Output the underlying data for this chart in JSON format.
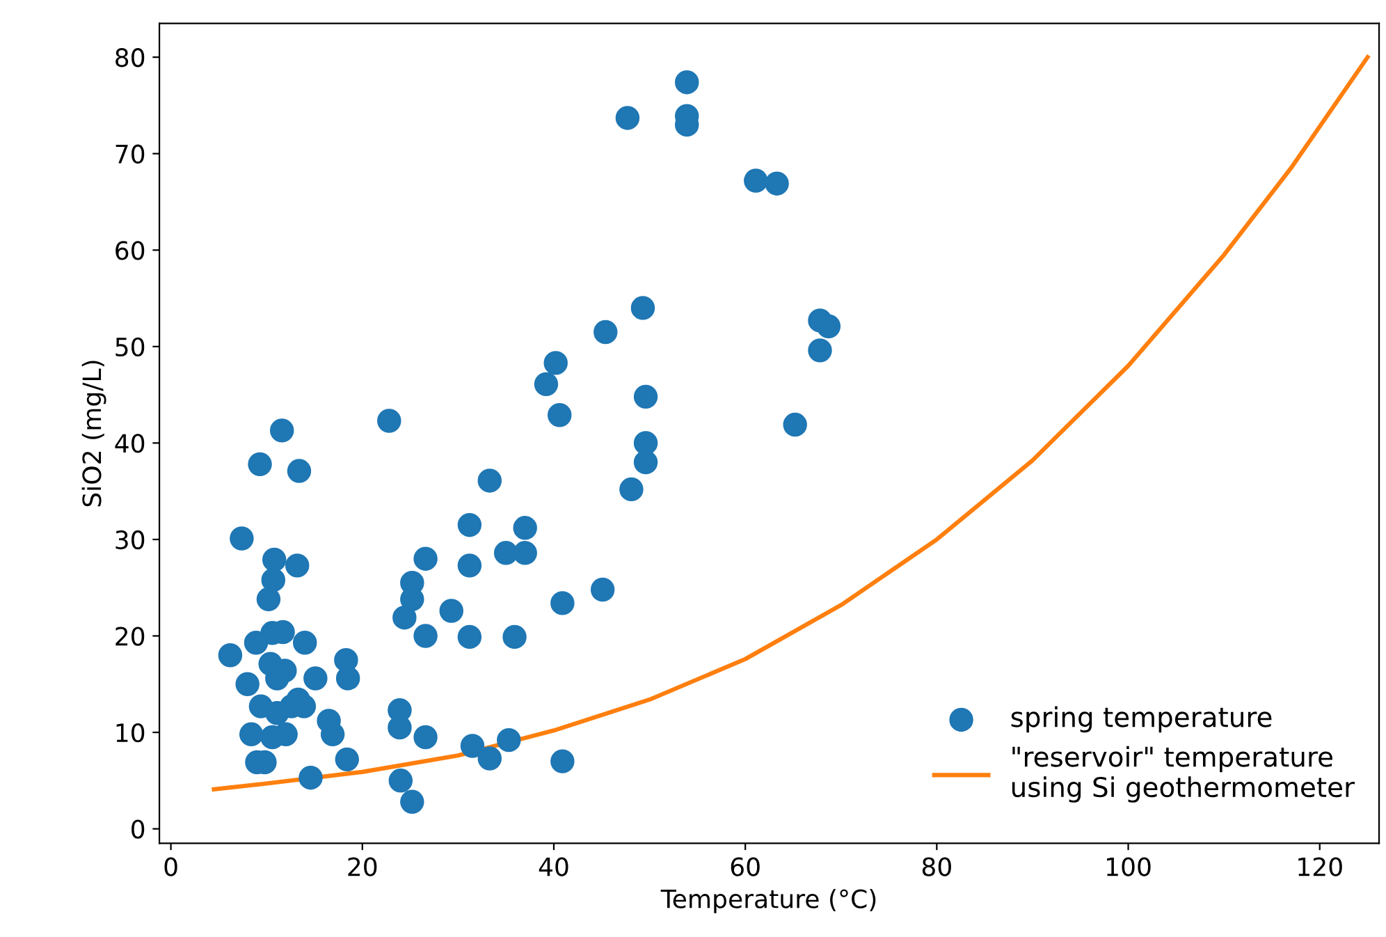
{
  "chart_data": {
    "type": "scatter",
    "xlabel": "Temperature (°C)",
    "ylabel": "SiO2 (mg/L)",
    "xlim": [
      -1.2,
      126.2
    ],
    "ylim": [
      -1.5,
      83.5
    ],
    "xticks": [
      0,
      20,
      40,
      60,
      80,
      100,
      120
    ],
    "yticks": [
      0,
      10,
      20,
      30,
      40,
      50,
      60,
      70,
      80
    ],
    "legend": "bottom right",
    "grid": false,
    "series": [
      {
        "name": "spring temperature",
        "marker": "circle",
        "color": "#1f77b4",
        "x": [
          6.2,
          7.4,
          9.3,
          11.6,
          13.4,
          13.2,
          8.0,
          8.9,
          10.2,
          10.8,
          10.7,
          10.6,
          11.7,
          14.0,
          15.1,
          8.4,
          9.0,
          9.8,
          10.6,
          12.0,
          13.3,
          12.6,
          13.9,
          11.1,
          11.9,
          10.4,
          9.4,
          11.1,
          16.5,
          16.9,
          18.5,
          18.3,
          14.6,
          18.4,
          22.8,
          24.0,
          25.2,
          23.9,
          23.9,
          26.6,
          24.4,
          25.2,
          25.2,
          26.6,
          26.6,
          29.3,
          31.2,
          31.2,
          31.2,
          31.5,
          33.3,
          33.3,
          35.0,
          37.0,
          37.0,
          35.9,
          35.3,
          40.9,
          40.9,
          39.2,
          40.2,
          40.6,
          45.1,
          45.4,
          47.7,
          53.9,
          53.9,
          53.9,
          49.3,
          49.6,
          49.6,
          49.6,
          48.1,
          61.1,
          63.3,
          67.8,
          68.7,
          67.8,
          65.2
        ],
        "values": [
          18.0,
          30.1,
          37.8,
          41.3,
          37.1,
          27.3,
          15.0,
          19.3,
          23.8,
          27.9,
          25.8,
          20.3,
          20.4,
          19.3,
          15.6,
          9.8,
          6.9,
          6.9,
          9.5,
          9.8,
          13.4,
          12.7,
          12.7,
          15.6,
          16.4,
          17.1,
          12.7,
          12.0,
          11.2,
          9.8,
          15.6,
          17.5,
          5.3,
          7.2,
          42.3,
          5.0,
          2.8,
          10.5,
          12.3,
          9.5,
          21.9,
          25.5,
          23.8,
          20.0,
          28.0,
          22.6,
          31.5,
          27.3,
          19.9,
          8.6,
          36.1,
          7.3,
          28.6,
          28.6,
          31.2,
          19.9,
          9.2,
          23.4,
          7.0,
          46.1,
          48.3,
          42.9,
          24.8,
          51.5,
          73.7,
          77.4,
          73.9,
          73.0,
          54.0,
          44.8,
          40.0,
          38.0,
          35.2,
          67.2,
          66.9,
          52.7,
          52.1,
          49.6,
          41.9
        ]
      },
      {
        "name": "\"reservoir\" temperature\nusing Si geothermometer",
        "type": "line",
        "marker": "none",
        "line_style": "solid",
        "color": "#ff7f0e",
        "x": [
          4.5,
          10,
          20,
          30,
          40,
          50,
          60,
          70,
          80,
          90,
          100,
          110,
          117,
          125
        ],
        "values": [
          4.1,
          4.7,
          5.9,
          7.6,
          10.2,
          13.4,
          17.6,
          23.2,
          30.0,
          38.2,
          48.0,
          59.5,
          68.5,
          80.0
        ]
      }
    ]
  }
}
